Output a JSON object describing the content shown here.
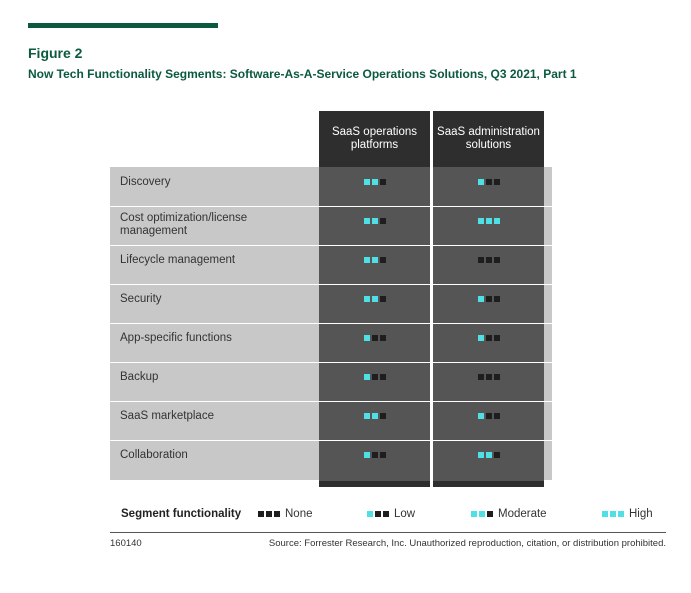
{
  "figure": {
    "label": "Figure 2",
    "title": "Now Tech Functionality Segments: Software-As-A-Service Operations Solutions, Q3 2021, Part 1"
  },
  "chart_data": {
    "type": "table",
    "scale_max": 3,
    "columns": [
      {
        "header": "SaaS operations platforms"
      },
      {
        "header": "SaaS administration solutions"
      }
    ],
    "rows": [
      {
        "label": "Discovery",
        "values": [
          2,
          1
        ]
      },
      {
        "label": "Cost optimization/license management",
        "values": [
          2,
          3
        ]
      },
      {
        "label": "Lifecycle management",
        "values": [
          2,
          0
        ]
      },
      {
        "label": "Security",
        "values": [
          2,
          1
        ]
      },
      {
        "label": "App-specific functions",
        "values": [
          1,
          1
        ]
      },
      {
        "label": "Backup",
        "values": [
          1,
          0
        ]
      },
      {
        "label": "SaaS marketplace",
        "values": [
          2,
          1
        ]
      },
      {
        "label": "Collaboration",
        "values": [
          1,
          2
        ]
      }
    ],
    "legend": {
      "title": "Segment functionality",
      "items": [
        {
          "label": "None",
          "level": 0
        },
        {
          "label": "Low",
          "level": 1
        },
        {
          "label": "Moderate",
          "level": 2
        },
        {
          "label": "High",
          "level": 3
        }
      ]
    }
  },
  "colors": {
    "brand_green": "#0b5a40",
    "dot_on": "#4fe0e6",
    "dot_off": "#1e1e1e",
    "header_dark": "#2e2e2e",
    "body_gray": "#555555",
    "label_gray": "#c8c8c8"
  },
  "footer": {
    "id": "160140",
    "source": "Source: Forrester Research, Inc. Unauthorized reproduction, citation, or distribution prohibited."
  }
}
